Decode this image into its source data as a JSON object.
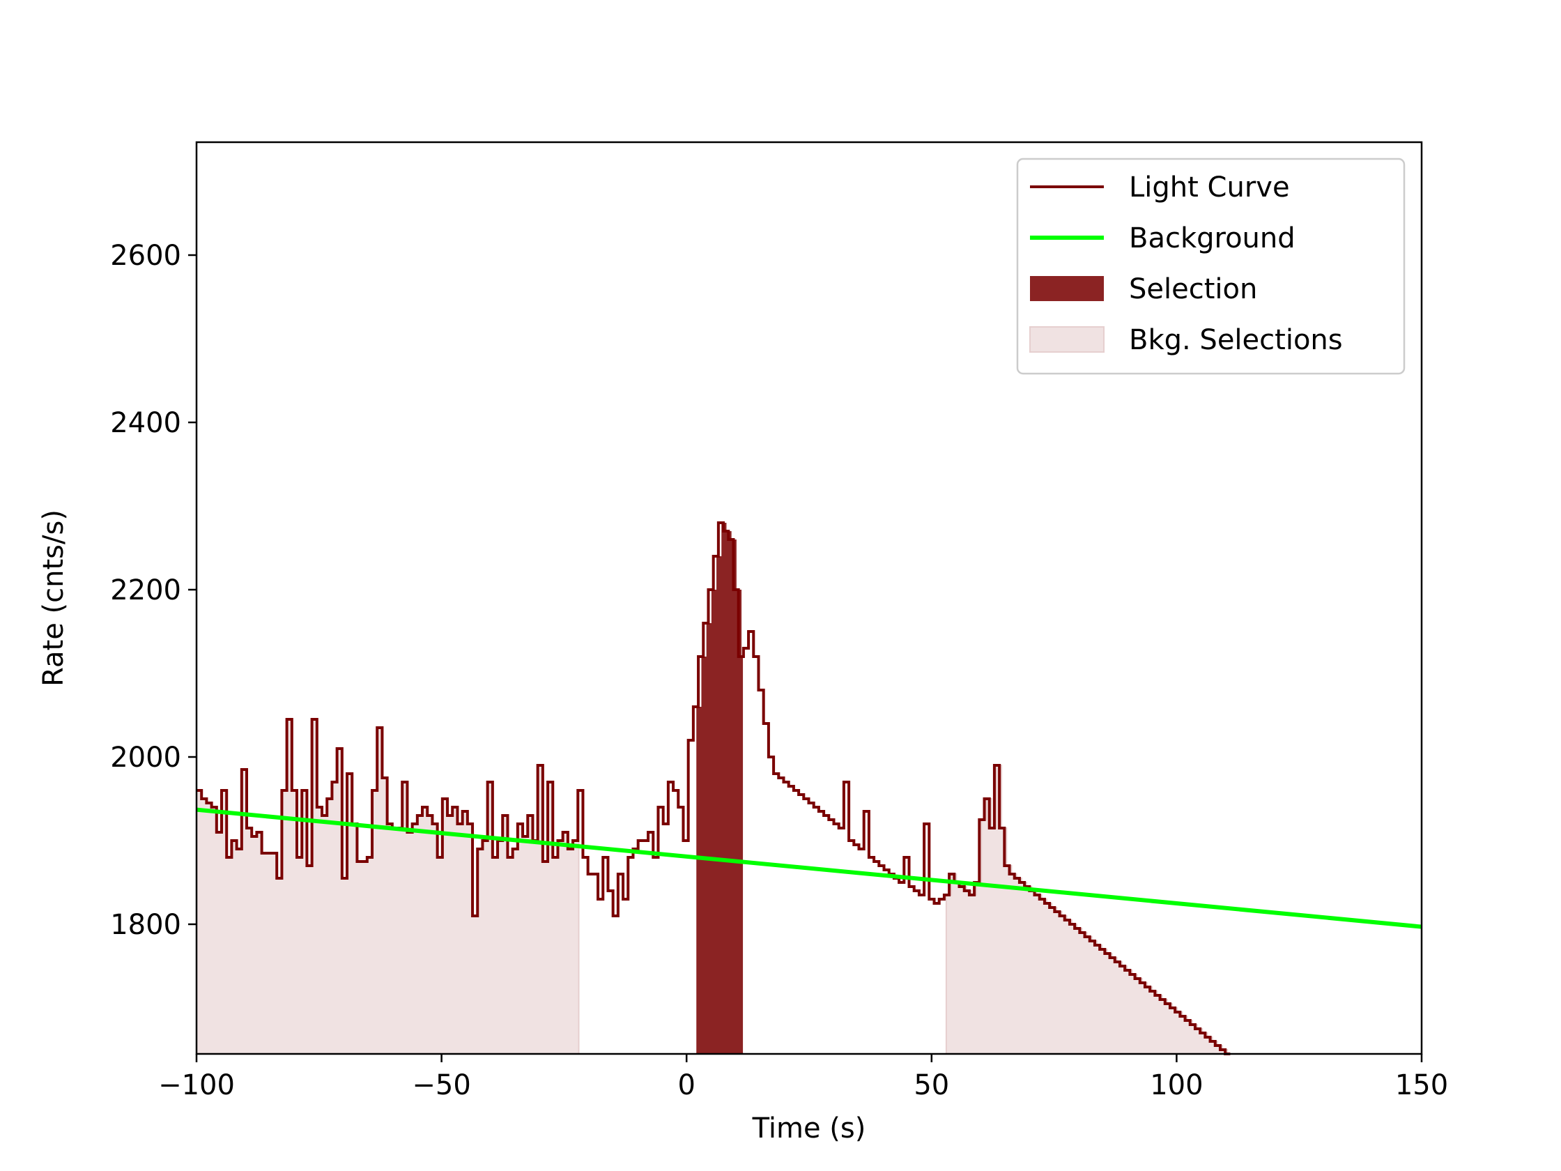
{
  "chart_data": {
    "type": "line",
    "title": "",
    "xlabel": "Time (s)",
    "ylabel": "Rate (cnts/s)",
    "xlim": [
      -100,
      150
    ],
    "ylim": [
      1645,
      2735
    ],
    "xticks": [
      -100,
      -50,
      0,
      50,
      100,
      150
    ],
    "xtick_labels": [
      "−100",
      "−50",
      "0",
      "50",
      "100",
      "150"
    ],
    "yticks": [
      1800,
      2000,
      2200,
      2400,
      2600
    ],
    "ytick_labels": [
      "1800",
      "2000",
      "2200",
      "2400",
      "2600"
    ],
    "grid": false,
    "legend_position": "top-right",
    "colors": {
      "light_curve": "#7a0000",
      "background": "#00ff00",
      "selection": "#8b2323",
      "bkg_selection": "#f0e2e2",
      "bkg_selection_edge": "#e6cfcf"
    },
    "legend": [
      {
        "label": "Light Curve",
        "kind": "line",
        "color": "#7a0000"
      },
      {
        "label": "Background",
        "kind": "line",
        "color": "#00ff00"
      },
      {
        "label": "Selection",
        "kind": "patch",
        "color": "#8b2323"
      },
      {
        "label": "Bkg. Selections",
        "kind": "patch",
        "color": "#f0e2e2"
      }
    ],
    "bkg_selections": [
      [
        -100,
        -22
      ],
      [
        53,
        150
      ]
    ],
    "selection": [
      2,
      11.5
    ],
    "background_line": {
      "x": [
        -100,
        150
      ],
      "y": [
        1937,
        1797
      ]
    },
    "light_curve_step": 1.024,
    "light_curve_start": -100,
    "light_curve": [
      1960,
      1950,
      1945,
      1940,
      1910,
      1960,
      1880,
      1900,
      1890,
      1985,
      1915,
      1905,
      1910,
      1885,
      1885,
      1885,
      1855,
      1960,
      2045,
      1960,
      1880,
      1960,
      1870,
      2045,
      1940,
      1930,
      1950,
      1970,
      2010,
      1855,
      1980,
      1920,
      1875,
      1875,
      1880,
      1960,
      2035,
      1975,
      1920,
      1915,
      1915,
      1970,
      1910,
      1920,
      1930,
      1940,
      1930,
      1920,
      1880,
      1950,
      1930,
      1940,
      1920,
      1935,
      1920,
      1810,
      1890,
      1900,
      1970,
      1880,
      1900,
      1930,
      1880,
      1890,
      1920,
      1905,
      1930,
      1900,
      1990,
      1875,
      1970,
      1880,
      1900,
      1910,
      1890,
      1900,
      1960,
      1880,
      1860,
      1860,
      1830,
      1880,
      1840,
      1810,
      1860,
      1830,
      1880,
      1890,
      1900,
      1900,
      1910,
      1880,
      1940,
      1920,
      1970,
      1960,
      1940,
      1900,
      2020,
      2060,
      2120,
      2160,
      2200,
      2240,
      2280,
      2270,
      2260,
      2200,
      2120,
      2130,
      2150,
      2120,
      2080,
      2040,
      2000,
      1980,
      1975,
      1970,
      1965,
      1960,
      1955,
      1950,
      1945,
      1940,
      1935,
      1930,
      1925,
      1920,
      1915,
      1970,
      1900,
      1895,
      1890,
      1935,
      1880,
      1875,
      1870,
      1865,
      1860,
      1855,
      1850,
      1880,
      1845,
      1840,
      1835,
      1920,
      1830,
      1825,
      1830,
      1835,
      1860,
      1850,
      1845,
      1840,
      1835,
      1850,
      1925,
      1950,
      1915,
      1990,
      1915,
      1870,
      1860,
      1855,
      1850,
      1845,
      1840,
      1835,
      1830,
      1825,
      1820,
      1815,
      1810,
      1805,
      1800,
      1795,
      1790,
      1785,
      1780,
      1775,
      1770,
      1765,
      1760,
      1755,
      1750,
      1745,
      1740,
      1735,
      1730,
      1725,
      1720,
      1715,
      1710,
      1705,
      1700,
      1695,
      1690,
      1685,
      1680,
      1675,
      1670,
      1665,
      1660,
      1655,
      1650,
      1645
    ],
    "lc_noise_seed": 7
  }
}
